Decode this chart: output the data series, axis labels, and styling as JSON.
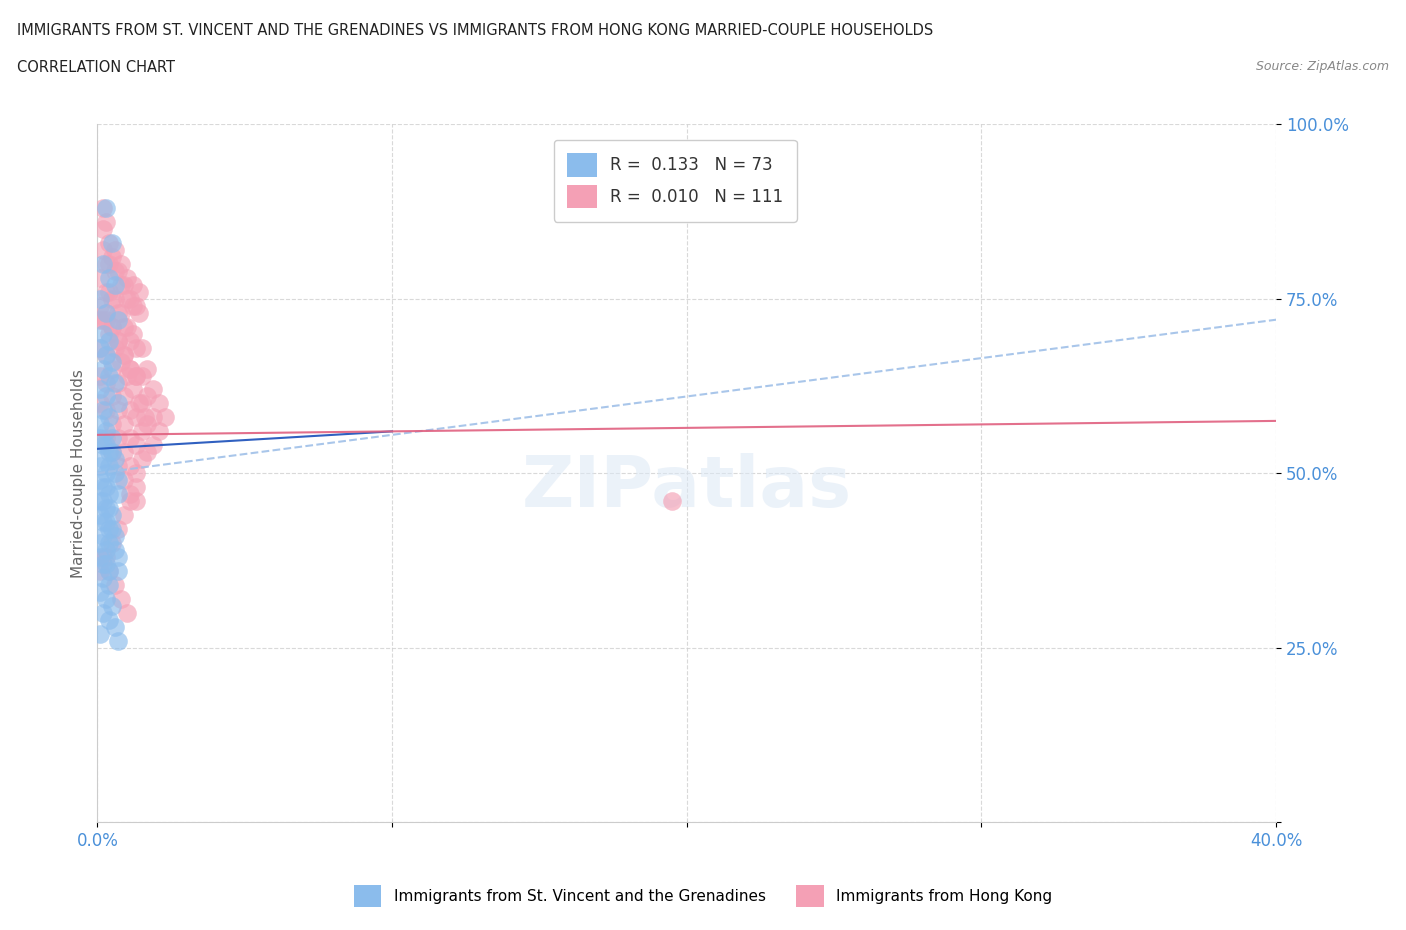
{
  "title_line1": "IMMIGRANTS FROM ST. VINCENT AND THE GRENADINES VS IMMIGRANTS FROM HONG KONG MARRIED-COUPLE HOUSEHOLDS",
  "title_line2": "CORRELATION CHART",
  "source": "Source: ZipAtlas.com",
  "ylabel": "Married-couple Households",
  "xlim": [
    0.0,
    0.4
  ],
  "ylim": [
    0.0,
    1.0
  ],
  "xticks": [
    0.0,
    0.1,
    0.2,
    0.3,
    0.4
  ],
  "xtick_labels": [
    "0.0%",
    "",
    "",
    "",
    "40.0%"
  ],
  "yticks": [
    0.0,
    0.25,
    0.5,
    0.75,
    1.0
  ],
  "ytick_labels": [
    "",
    "25.0%",
    "50.0%",
    "75.0%",
    "100.0%"
  ],
  "blue_color": "#8bbcec",
  "pink_color": "#f4a0b5",
  "blue_R": 0.133,
  "blue_N": 73,
  "pink_R": 0.01,
  "pink_N": 111,
  "legend_label_blue": "Immigrants from St. Vincent and the Grenadines",
  "legend_label_pink": "Immigrants from Hong Kong",
  "watermark": "ZIPatlas",
  "blue_scatter_x": [
    0.003,
    0.005,
    0.002,
    0.004,
    0.006,
    0.001,
    0.003,
    0.007,
    0.002,
    0.004,
    0.001,
    0.003,
    0.005,
    0.002,
    0.004,
    0.006,
    0.001,
    0.003,
    0.007,
    0.002,
    0.004,
    0.001,
    0.003,
    0.005,
    0.002,
    0.004,
    0.006,
    0.001,
    0.003,
    0.007,
    0.002,
    0.004,
    0.001,
    0.003,
    0.005,
    0.002,
    0.004,
    0.006,
    0.001,
    0.003,
    0.007,
    0.002,
    0.004,
    0.001,
    0.003,
    0.005,
    0.002,
    0.004,
    0.006,
    0.001,
    0.003,
    0.007,
    0.002,
    0.004,
    0.001,
    0.003,
    0.005,
    0.002,
    0.004,
    0.006,
    0.001,
    0.003,
    0.007,
    0.002,
    0.004,
    0.001,
    0.003,
    0.005,
    0.002,
    0.004,
    0.006,
    0.001,
    0.007
  ],
  "blue_scatter_y": [
    0.88,
    0.83,
    0.8,
    0.78,
    0.77,
    0.75,
    0.73,
    0.72,
    0.7,
    0.69,
    0.68,
    0.67,
    0.66,
    0.65,
    0.64,
    0.63,
    0.62,
    0.61,
    0.6,
    0.59,
    0.58,
    0.57,
    0.56,
    0.55,
    0.54,
    0.53,
    0.52,
    0.51,
    0.5,
    0.49,
    0.48,
    0.47,
    0.46,
    0.45,
    0.44,
    0.43,
    0.42,
    0.41,
    0.4,
    0.39,
    0.38,
    0.37,
    0.36,
    0.55,
    0.54,
    0.53,
    0.52,
    0.51,
    0.5,
    0.49,
    0.48,
    0.47,
    0.46,
    0.45,
    0.44,
    0.43,
    0.42,
    0.41,
    0.4,
    0.39,
    0.38,
    0.37,
    0.36,
    0.35,
    0.34,
    0.33,
    0.32,
    0.31,
    0.3,
    0.29,
    0.28,
    0.27,
    0.26
  ],
  "pink_scatter_x": [
    0.002,
    0.004,
    0.006,
    0.008,
    0.01,
    0.012,
    0.014,
    0.002,
    0.004,
    0.006,
    0.008,
    0.01,
    0.012,
    0.014,
    0.002,
    0.004,
    0.006,
    0.008,
    0.01,
    0.012,
    0.003,
    0.005,
    0.007,
    0.009,
    0.011,
    0.013,
    0.003,
    0.005,
    0.007,
    0.009,
    0.011,
    0.013,
    0.003,
    0.005,
    0.007,
    0.009,
    0.011,
    0.013,
    0.001,
    0.003,
    0.005,
    0.007,
    0.009,
    0.011,
    0.013,
    0.001,
    0.003,
    0.005,
    0.007,
    0.009,
    0.011,
    0.013,
    0.001,
    0.003,
    0.005,
    0.007,
    0.009,
    0.011,
    0.013,
    0.001,
    0.003,
    0.005,
    0.007,
    0.009,
    0.011,
    0.013,
    0.001,
    0.003,
    0.005,
    0.007,
    0.009,
    0.011,
    0.013,
    0.015,
    0.017,
    0.019,
    0.021,
    0.023,
    0.015,
    0.017,
    0.019,
    0.021,
    0.015,
    0.017,
    0.019,
    0.015,
    0.017,
    0.015,
    0.013,
    0.011,
    0.009,
    0.007,
    0.005,
    0.003,
    0.001,
    0.002,
    0.004,
    0.006,
    0.008,
    0.01,
    0.195,
    0.002,
    0.004,
    0.006,
    0.008,
    0.01,
    0.012,
    0.014,
    0.016,
    0.001,
    0.003
  ],
  "pink_scatter_y": [
    0.88,
    0.83,
    0.82,
    0.8,
    0.78,
    0.77,
    0.76,
    0.85,
    0.8,
    0.79,
    0.77,
    0.75,
    0.74,
    0.73,
    0.82,
    0.76,
    0.75,
    0.73,
    0.71,
    0.7,
    0.86,
    0.81,
    0.79,
    0.77,
    0.75,
    0.74,
    0.8,
    0.75,
    0.73,
    0.71,
    0.69,
    0.68,
    0.76,
    0.71,
    0.69,
    0.67,
    0.65,
    0.64,
    0.78,
    0.73,
    0.71,
    0.69,
    0.67,
    0.65,
    0.64,
    0.72,
    0.67,
    0.65,
    0.63,
    0.61,
    0.59,
    0.58,
    0.68,
    0.63,
    0.61,
    0.59,
    0.57,
    0.55,
    0.54,
    0.64,
    0.59,
    0.57,
    0.55,
    0.53,
    0.51,
    0.5,
    0.6,
    0.55,
    0.53,
    0.51,
    0.49,
    0.47,
    0.46,
    0.68,
    0.65,
    0.62,
    0.6,
    0.58,
    0.64,
    0.61,
    0.58,
    0.56,
    0.6,
    0.57,
    0.54,
    0.56,
    0.53,
    0.52,
    0.48,
    0.46,
    0.44,
    0.42,
    0.4,
    0.38,
    0.36,
    0.38,
    0.36,
    0.34,
    0.32,
    0.3,
    0.46,
    0.72,
    0.7,
    0.68,
    0.66,
    0.64,
    0.62,
    0.6,
    0.58,
    0.74,
    0.72
  ],
  "blue_trendline_x": [
    0.0,
    0.4
  ],
  "blue_trendline_y": [
    0.5,
    0.72
  ],
  "pink_trendline_x": [
    0.0,
    0.4
  ],
  "pink_trendline_y": [
    0.555,
    0.575
  ]
}
